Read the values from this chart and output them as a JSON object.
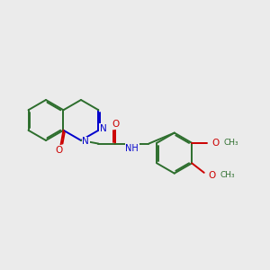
{
  "background_color": "#ebebeb",
  "bond_color": "#2d6e2d",
  "N_color": "#0000cc",
  "O_color": "#cc0000",
  "line_width": 1.4,
  "dbo": 0.055,
  "xlim": [
    -0.5,
    9.5
  ],
  "ylim": [
    -2.0,
    3.5
  ]
}
